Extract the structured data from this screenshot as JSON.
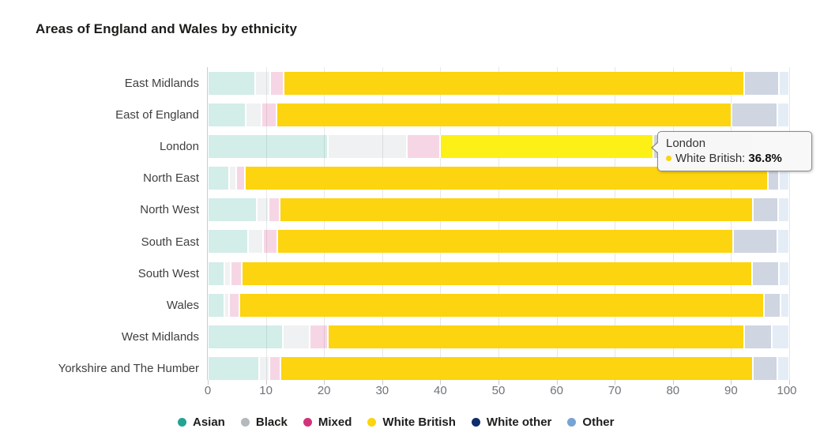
{
  "title": "Areas of England and Wales by ethnicity",
  "chart_data": {
    "type": "bar",
    "stacked": true,
    "orientation": "horizontal",
    "unit": "%",
    "xlim": [
      0,
      100
    ],
    "grid": true,
    "legend_position": "bottom",
    "categories": [
      "East Midlands",
      "East of England",
      "London",
      "North East",
      "North West",
      "South East",
      "South West",
      "Wales",
      "West Midlands",
      "Yorkshire and The Humber"
    ],
    "series": [
      {
        "name": "Asian",
        "color": "#23a393",
        "values": [
          8.2,
          6.5,
          20.7,
          3.7,
          8.4,
          6.9,
          2.9,
          2.8,
          12.9,
          8.8
        ]
      },
      {
        "name": "Black",
        "color": "#b5b9bc",
        "values": [
          2.5,
          2.8,
          13.5,
          1.2,
          2.0,
          2.6,
          1.0,
          0.9,
          4.6,
          1.8
        ]
      },
      {
        "name": "Mixed",
        "color": "#d1337b",
        "values": [
          2.4,
          2.5,
          5.7,
          1.5,
          2.0,
          2.5,
          1.9,
          1.7,
          3.2,
          1.9
        ]
      },
      {
        "name": "White British",
        "color": "#fcd40f",
        "values": [
          79.1,
          78.3,
          36.8,
          89.9,
          81.3,
          78.4,
          87.8,
          90.2,
          71.6,
          81.2
        ]
      },
      {
        "name": "White other",
        "color": "#0d2d6b",
        "values": [
          6.0,
          7.8,
          17.0,
          2.0,
          4.4,
          7.6,
          4.6,
          2.9,
          4.7,
          4.3
        ]
      },
      {
        "name": "Other",
        "color": "#78a3d4",
        "values": [
          1.8,
          2.1,
          6.3,
          1.7,
          1.9,
          2.0,
          1.8,
          1.5,
          3.0,
          2.0
        ]
      }
    ],
    "x_axis": {
      "ticks": [
        0,
        10,
        20,
        30,
        40,
        50,
        60,
        70,
        80,
        90,
        100
      ]
    },
    "highlighted_series": "White British",
    "hover_category": "London",
    "hover_segment_color": "#fcf016",
    "faded_series_opacity": 0.2
  },
  "tooltip": {
    "title": "London",
    "series_label": "White British:",
    "value": "36.8%",
    "marker_color": "#fcd40f"
  }
}
